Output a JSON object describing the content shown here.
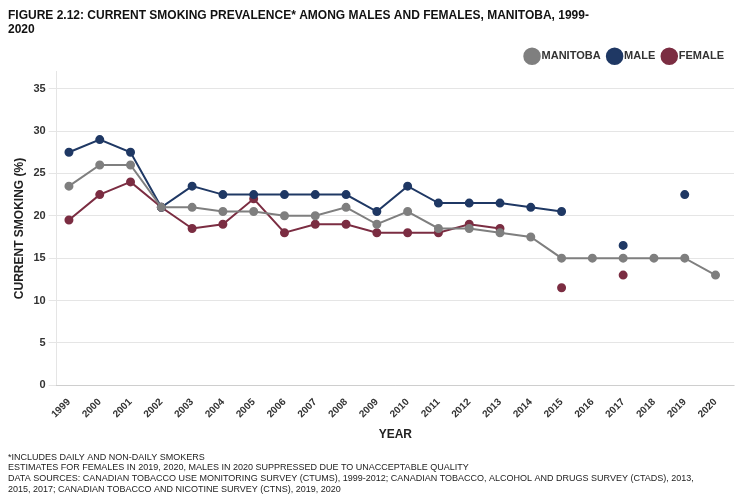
{
  "chart_data": {
    "type": "line",
    "title": "FIGURE 2.12: CURRENT SMOKING PREVALENCE* AMONG MALES AND FEMALES, MANITOBA, 1999-\n2020",
    "xlabel": "YEAR",
    "ylabel": "CURRENT SMOKING (%)",
    "x": [
      1999,
      2000,
      2001,
      2002,
      2003,
      2004,
      2005,
      2006,
      2007,
      2008,
      2009,
      2010,
      2011,
      2012,
      2013,
      2014,
      2015,
      2016,
      2017,
      2018,
      2019,
      2020
    ],
    "series": [
      {
        "name": "MANITOBA",
        "color": "#7F7F7F",
        "marker": "circle",
        "values": [
          23.5,
          26.0,
          26.0,
          21.0,
          21.0,
          20.5,
          20.5,
          20.0,
          20.0,
          21.0,
          19.0,
          20.5,
          18.5,
          18.5,
          18.0,
          17.5,
          15.0,
          15.0,
          15.0,
          15.0,
          15.0,
          13.0
        ]
      },
      {
        "name": "MALE",
        "color": "#1F3864",
        "marker": "circle",
        "values": [
          27.5,
          29.0,
          27.5,
          21.0,
          23.5,
          22.5,
          22.5,
          22.5,
          22.5,
          22.5,
          20.5,
          23.5,
          21.5,
          21.5,
          21.5,
          21.0,
          20.5,
          null,
          16.5,
          null,
          22.5,
          null
        ]
      },
      {
        "name": "FEMALE",
        "color": "#7B2D42",
        "marker": "circle",
        "values": [
          19.5,
          22.5,
          24.0,
          21.0,
          18.5,
          19.0,
          22.0,
          18.0,
          19.0,
          19.0,
          18.0,
          18.0,
          18.0,
          19.0,
          18.5,
          null,
          11.5,
          null,
          13.0,
          null,
          null,
          null
        ]
      }
    ],
    "xlim": [
      1998.6,
      2020.6
    ],
    "xticks": [
      1999,
      2000,
      2001,
      2002,
      2003,
      2004,
      2005,
      2006,
      2007,
      2008,
      2009,
      2010,
      2011,
      2012,
      2013,
      2014,
      2015,
      2016,
      2017,
      2018,
      2019,
      2020
    ],
    "ylim": [
      0,
      37
    ],
    "yticks": [
      0,
      5,
      10,
      15,
      20,
      25,
      30,
      35
    ],
    "grid": "y",
    "legend": "upper right",
    "annotations": [
      "*INCLUDES DAILY AND NON-DAILY SMOKERS",
      "ESTIMATES FOR FEMALES IN 2019, 2020, MALES IN 2020 SUPPRESSED DUE TO UNACCEPTABLE QUALITY",
      "DATA SOURCES: CANADIAN TOBACCO USE MONITORING SURVEY (CTUMS), 1999-2012; CANADIAN TOBACCO, ALCOHOL AND DRUGS SURVEY (CTADS), 2013,",
      "2015, 2017; CANADIAN TOBACCO AND NICOTINE SURVEY (CTNS), 2019, 2020"
    ]
  }
}
